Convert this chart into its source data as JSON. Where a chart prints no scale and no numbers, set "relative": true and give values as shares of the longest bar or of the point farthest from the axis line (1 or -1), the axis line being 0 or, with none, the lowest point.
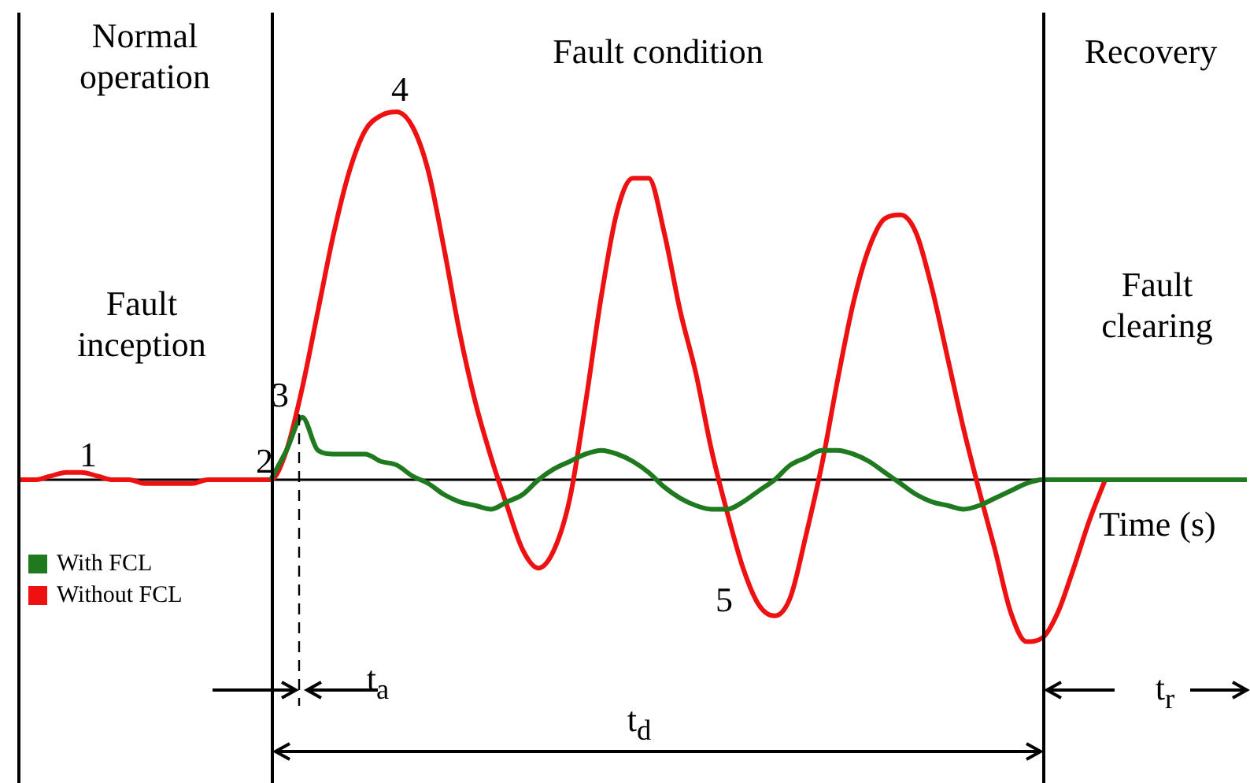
{
  "chart_data": {
    "type": "line",
    "relative": true,
    "tick_labels": false,
    "legend": "bottom left",
    "xlabel": "Time (s)",
    "categories": [
      null,
      null,
      null,
      null,
      null,
      null,
      null,
      null,
      null,
      null,
      null,
      null,
      null,
      null,
      null,
      null,
      null,
      null,
      null,
      null,
      null,
      null,
      null,
      null,
      null,
      null,
      null,
      null,
      null,
      null,
      null,
      null,
      null,
      null,
      null,
      null,
      null,
      null,
      null,
      null,
      null,
      null,
      null,
      null,
      null,
      null,
      null,
      null,
      null,
      null,
      null,
      null,
      null,
      null,
      null,
      null,
      null,
      null,
      null,
      null,
      null,
      null,
      null,
      null,
      null,
      null,
      null,
      null,
      null,
      null,
      null,
      null,
      null,
      null,
      null,
      null,
      null,
      null,
      null
    ],
    "series": [
      {
        "name": "With FCL",
        "color": "#1f7a1f",
        "values": [
          null,
          null,
          null,
          null,
          null,
          null,
          null,
          null,
          null,
          null,
          null,
          null,
          null,
          null,
          null,
          null,
          0,
          0.08,
          0.17,
          0.08,
          0.07,
          0.07,
          0.07,
          0.05,
          0.04,
          0.01,
          -0.01,
          -0.04,
          -0.06,
          -0.07,
          -0.08,
          -0.06,
          -0.04,
          0,
          0.03,
          0.05,
          0.07,
          0.08,
          0.07,
          0.05,
          0.02,
          -0.02,
          -0.05,
          -0.07,
          -0.08,
          -0.08,
          -0.06,
          -0.03,
          0,
          0.04,
          0.06,
          0.08,
          0.08,
          0.07,
          0.05,
          0.02,
          -0.01,
          -0.04,
          -0.06,
          -0.07,
          -0.08,
          -0.07,
          -0.05,
          -0.03,
          -0.01,
          0,
          0,
          0,
          0,
          0,
          0,
          0,
          0,
          0,
          0,
          0,
          0,
          0,
          0
        ]
      },
      {
        "name": "Without FCL",
        "color": "#ee1111",
        "values": [
          0,
          0,
          0.01,
          0.02,
          0.02,
          0.01,
          0,
          0,
          -0.01,
          -0.01,
          -0.01,
          -0.01,
          0,
          0,
          0,
          0,
          0,
          0.08,
          0.25,
          0.46,
          0.67,
          0.84,
          0.95,
          0.99,
          1,
          0.96,
          0.84,
          0.63,
          0.4,
          0.21,
          0.06,
          -0.07,
          -0.19,
          -0.24,
          -0.19,
          -0.05,
          0.21,
          0.5,
          0.73,
          0.82,
          0.82,
          0.67,
          0.46,
          0.29,
          0.08,
          -0.09,
          -0.24,
          -0.34,
          -0.37,
          -0.32,
          -0.15,
          0.04,
          0.27,
          0.48,
          0.63,
          0.71,
          0.72,
          0.67,
          0.52,
          0.33,
          0.14,
          -0.03,
          -0.19,
          -0.36,
          -0.44,
          -0.43,
          -0.36,
          -0.24,
          -0.11,
          0,
          null,
          null,
          null,
          null,
          null,
          null,
          null,
          null,
          null
        ]
      }
    ],
    "annotations": [
      "Normal operation",
      "Fault condition",
      "Recovery",
      "Fault inception",
      "Fault clearing",
      "1",
      "2",
      "3",
      "4",
      "5",
      "t$_{a}$",
      "t$_{d}$",
      "t$_{r}$"
    ]
  }
}
